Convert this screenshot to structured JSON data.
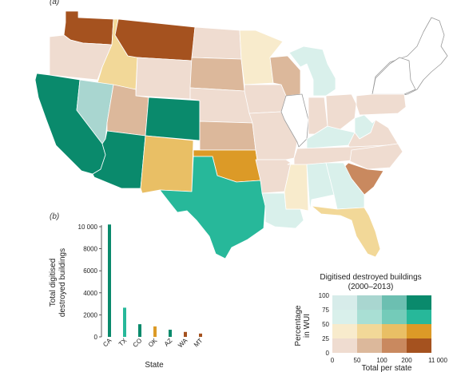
{
  "panel_a_label": "(a)",
  "panel_b_label": "(b)",
  "colors": {
    "c1_4": "#0a8a6c",
    "c1_3": "#6cbfb1",
    "c1_2": "#a9d6d0",
    "c1_1": "#d7ecea",
    "c2_4": "#27b89a",
    "c2_3": "#74cbb9",
    "c2_2": "#a9dfd4",
    "c2_1": "#d9f0eb",
    "c3_4": "#dc9a27",
    "c3_3": "#e9bf65",
    "c3_2": "#f2d898",
    "c3_1": "#f8ebcc",
    "c4_4": "#a5521f",
    "c4_3": "#c9895f",
    "c4_2": "#dcb89b",
    "c4_1": "#efdcd0",
    "no_data": "#ffffff",
    "border": "#ffffff",
    "outline": "#999999"
  },
  "map": {
    "states": [
      {
        "code": "WA",
        "fill": "c4_4"
      },
      {
        "code": "OR",
        "fill": "c4_1"
      },
      {
        "code": "CA",
        "fill": "c1_4"
      },
      {
        "code": "ID",
        "fill": "c3_2"
      },
      {
        "code": "NV",
        "fill": "c1_2"
      },
      {
        "code": "MT",
        "fill": "c4_4"
      },
      {
        "code": "WY",
        "fill": "c4_1"
      },
      {
        "code": "UT",
        "fill": "c4_2"
      },
      {
        "code": "AZ",
        "fill": "c1_4"
      },
      {
        "code": "CO",
        "fill": "c1_4"
      },
      {
        "code": "NM",
        "fill": "c3_3"
      },
      {
        "code": "ND",
        "fill": "c4_1"
      },
      {
        "code": "SD",
        "fill": "c4_2"
      },
      {
        "code": "NE",
        "fill": "c4_1"
      },
      {
        "code": "KS",
        "fill": "c4_2"
      },
      {
        "code": "OK",
        "fill": "c3_4"
      },
      {
        "code": "TX",
        "fill": "c2_4"
      },
      {
        "code": "MN",
        "fill": "c3_1"
      },
      {
        "code": "IA",
        "fill": "c4_1"
      },
      {
        "code": "MO",
        "fill": "c4_1"
      },
      {
        "code": "AR",
        "fill": "c4_1"
      },
      {
        "code": "LA",
        "fill": "c2_1"
      },
      {
        "code": "WI",
        "fill": "c4_2"
      },
      {
        "code": "IL",
        "fill": "no_data"
      },
      {
        "code": "MI",
        "fill": "c2_1"
      },
      {
        "code": "IN",
        "fill": "c4_1"
      },
      {
        "code": "OH",
        "fill": "c4_1"
      },
      {
        "code": "KY",
        "fill": "c2_1"
      },
      {
        "code": "TN",
        "fill": "c4_1"
      },
      {
        "code": "MS",
        "fill": "c3_1"
      },
      {
        "code": "AL",
        "fill": "c2_1"
      },
      {
        "code": "GA",
        "fill": "c2_1"
      },
      {
        "code": "FL",
        "fill": "c3_2"
      },
      {
        "code": "SC",
        "fill": "c4_3"
      },
      {
        "code": "NC",
        "fill": "c4_1"
      },
      {
        "code": "VA",
        "fill": "c4_1"
      },
      {
        "code": "WV",
        "fill": "c2_1"
      },
      {
        "code": "PA",
        "fill": "c4_1"
      },
      {
        "code": "NY",
        "fill": "no_data"
      },
      {
        "code": "NE_REGION",
        "fill": "no_data"
      }
    ]
  },
  "chart_data": {
    "type": "bar",
    "categories": [
      "CA",
      "TX",
      "CO",
      "OK",
      "AZ",
      "WA",
      "MT"
    ],
    "values": [
      10200,
      2650,
      1150,
      950,
      650,
      450,
      300
    ],
    "bar_colors": [
      "c1_4",
      "c2_4",
      "c1_4",
      "c3_4",
      "c1_4",
      "c4_4",
      "c4_4"
    ],
    "ylabel": "Total digitised destroyed buildings",
    "ylabel_lines": [
      "Total digitised",
      "destroyed buildings"
    ],
    "xlabel": "State",
    "ylim": [
      0,
      10000
    ],
    "yticks": [
      "0",
      "2000",
      "4000",
      "6000",
      "8000",
      "10 000"
    ]
  },
  "legend": {
    "title_line1": "Digitised destroyed buildings",
    "title_line2": "(2000–2013)",
    "ylabel_line1": "Percentage",
    "ylabel_line2": "in WUI",
    "yticks": [
      "100",
      "75",
      "50",
      "25",
      "0"
    ],
    "xticks": [
      "0",
      "50",
      "100",
      "200",
      "11 000"
    ],
    "xlabel": "Total per state",
    "rows": [
      [
        "c1_1",
        "c1_2",
        "c1_3",
        "c1_4"
      ],
      [
        "c2_1",
        "c2_2",
        "c2_3",
        "c2_4"
      ],
      [
        "c3_1",
        "c3_2",
        "c3_3",
        "c3_4"
      ],
      [
        "c4_1",
        "c4_2",
        "c4_3",
        "c4_4"
      ]
    ]
  }
}
